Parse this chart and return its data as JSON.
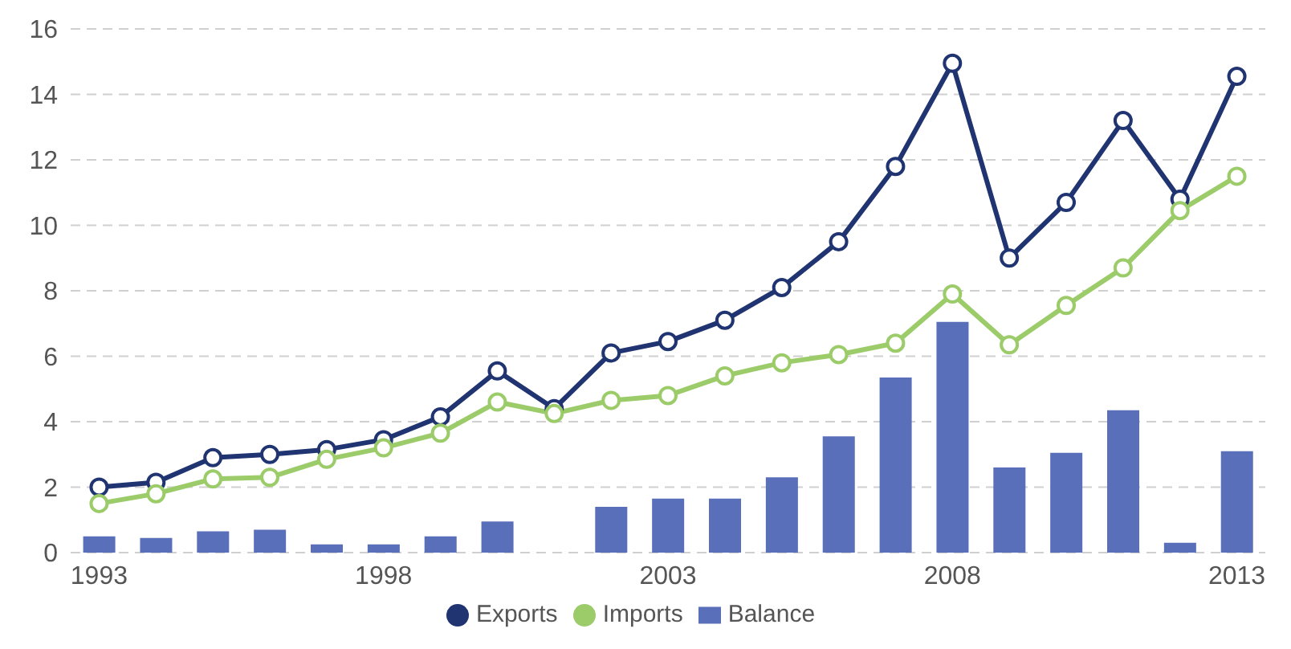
{
  "chart_data": {
    "type": "line",
    "categories": [
      "1993",
      null,
      null,
      null,
      null,
      "1998",
      null,
      null,
      null,
      null,
      "2003",
      null,
      null,
      null,
      null,
      "2008",
      null,
      null,
      null,
      null,
      "2013"
    ],
    "series": [
      {
        "name": "Balance",
        "type": "bar",
        "color": "#5a6fb9",
        "values": [
          0.5,
          0.45,
          0.65,
          0.7,
          0.25,
          0.25,
          0.5,
          0.95,
          null,
          1.4,
          1.65,
          1.65,
          2.3,
          3.55,
          5.35,
          7.05,
          2.6,
          3.05,
          4.35,
          0.3,
          3.1
        ]
      },
      {
        "name": "Exports",
        "color": "#1f3470",
        "values": [
          2.0,
          2.15,
          2.9,
          3.0,
          3.15,
          3.45,
          4.15,
          5.55,
          4.4,
          6.1,
          6.45,
          7.1,
          8.1,
          9.5,
          11.8,
          14.95,
          9.0,
          10.7,
          13.2,
          10.8,
          14.55
        ]
      },
      {
        "name": "Imports",
        "color": "#9ccc6a",
        "values": [
          1.5,
          1.8,
          2.25,
          2.3,
          2.85,
          3.2,
          3.65,
          4.6,
          4.25,
          4.65,
          4.8,
          5.4,
          5.8,
          6.05,
          6.4,
          7.9,
          6.35,
          7.55,
          8.7,
          10.45,
          11.5
        ]
      }
    ],
    "ylim": [
      0,
      16
    ],
    "yticks": [
      0,
      2,
      4,
      6,
      8,
      10,
      12,
      14,
      16
    ],
    "grid": "y",
    "legend": "bottom",
    "marker": "circle"
  }
}
